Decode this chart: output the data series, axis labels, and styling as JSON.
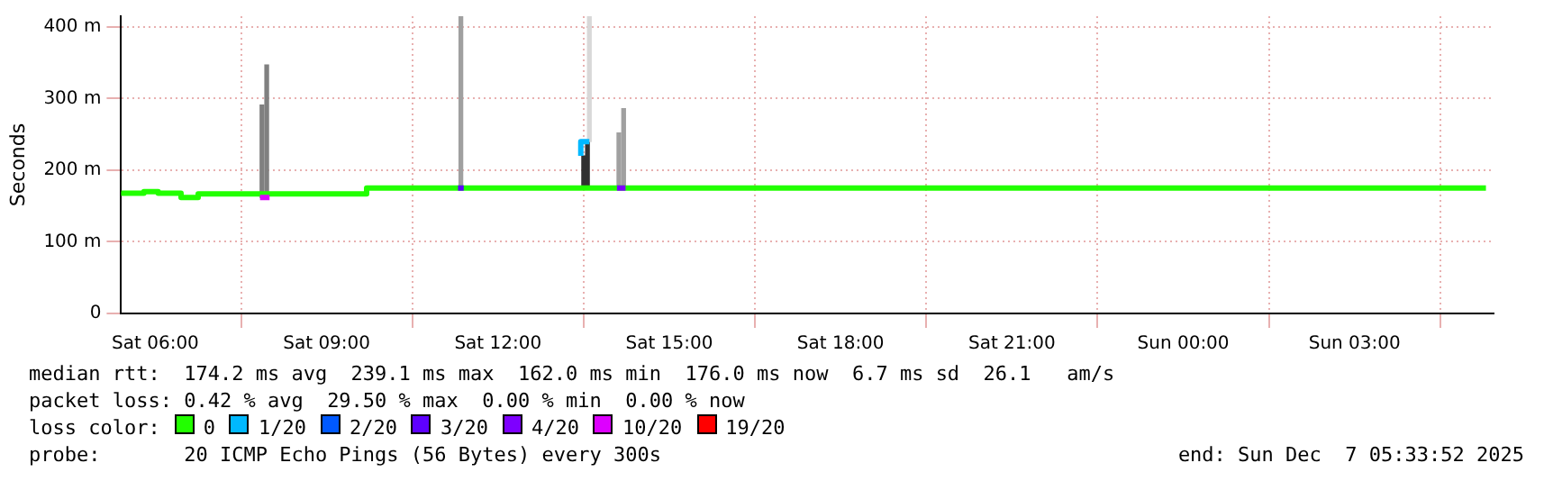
{
  "chart_data": {
    "type": "step",
    "ylabel": "Seconds",
    "legend_title": "loss color:",
    "legend": "bottom",
    "grid": true,
    "xlim": [
      "2025-12-06T05:24",
      "2025-12-07T05:26"
    ],
    "xticks": [
      {
        "value": "2025-12-06T06:00",
        "label": "Sat 06:00"
      },
      {
        "value": "2025-12-06T09:00",
        "label": "Sat 09:00"
      },
      {
        "value": "2025-12-06T12:00",
        "label": "Sat 12:00"
      },
      {
        "value": "2025-12-06T15:00",
        "label": "Sat 15:00"
      },
      {
        "value": "2025-12-06T18:00",
        "label": "Sat 18:00"
      },
      {
        "value": "2025-12-06T21:00",
        "label": "Sat 21:00"
      },
      {
        "value": "2025-12-07T00:00",
        "label": "Sun 00:00"
      },
      {
        "value": "2025-12-07T03:00",
        "label": "Sun 03:00"
      }
    ],
    "ylim": [
      0,
      415
    ],
    "yticks": [
      0,
      {
        "value": 100,
        "label": "100 m"
      },
      {
        "value": 200,
        "label": "200 m"
      },
      {
        "value": 300,
        "label": "300 m"
      },
      {
        "value": 400,
        "label": "400 m"
      }
    ],
    "series": [
      {
        "type": "bar",
        "x": [
          "2025-12-06T07:52",
          "2025-12-06T07:57",
          "2025-12-06T11:21",
          "2025-12-06T13:30",
          "2025-12-06T13:34",
          "2025-12-06T13:36",
          "2025-12-06T14:07",
          "2025-12-06T14:12"
        ],
        "base": [
          162,
          162,
          175,
          175,
          175,
          240,
          175,
          175
        ],
        "values": [
          129,
          185,
          240,
          45,
          65,
          175,
          77,
          111
        ],
        "colors": [
          "#808080",
          "#808080",
          "#a0a0a0",
          "#303030",
          "#303030",
          "#d8d8d8",
          "#a0a0a0",
          "#a0a0a0"
        ]
      },
      {
        "name": "0",
        "color": "#22ff00",
        "x": [
          "2025-12-06T05:24",
          "2025-12-06T05:48",
          "2025-12-06T06:03",
          "2025-12-06T06:27",
          "2025-12-06T06:45",
          "2025-12-06T09:42",
          "2025-12-06T09:51",
          "2025-12-07T05:18"
        ],
        "values": [
          170,
          168,
          170,
          168,
          162,
          167,
          175,
          175
        ]
      },
      {
        "name": "1/20",
        "color": "#00b8ff",
        "x": [
          "2025-12-06T13:27",
          "2025-12-06T13:33",
          "2025-12-06T13:36"
        ],
        "values": [
          220,
          240,
          240
        ]
      },
      {
        "name": "2/20",
        "color": "#0059ff"
      },
      {
        "name": "3/20",
        "color": "#5e00ff",
        "x": [
          "2025-12-06T11:18",
          "2025-12-06T11:24"
        ],
        "values": [
          175,
          175
        ]
      },
      {
        "name": "4/20",
        "color": "#7e00ff",
        "x": [
          "2025-12-06T14:05",
          "2025-12-06T14:14"
        ],
        "values": [
          175,
          175
        ]
      },
      {
        "name": "10/20",
        "color": "#dd00ff",
        "x": [
          "2025-12-06T07:50",
          "2025-12-06T08:00"
        ],
        "values": [
          162,
          162
        ]
      },
      {
        "name": "19/20",
        "color": "#ff0000"
      }
    ],
    "annotations": [
      "median rtt:  174.2 ms avg  239.1 ms max  162.0 ms min  176.0 ms now  6.7 ms sd  26.1   am/s",
      "packet loss: 0.42 % avg  29.50 % max  0.00 % min  0.00 % now",
      "probe:       20 ICMP Echo Pings (56 Bytes) every 300s",
      "end: Sun Dec  7 05:33:52 2025"
    ]
  }
}
